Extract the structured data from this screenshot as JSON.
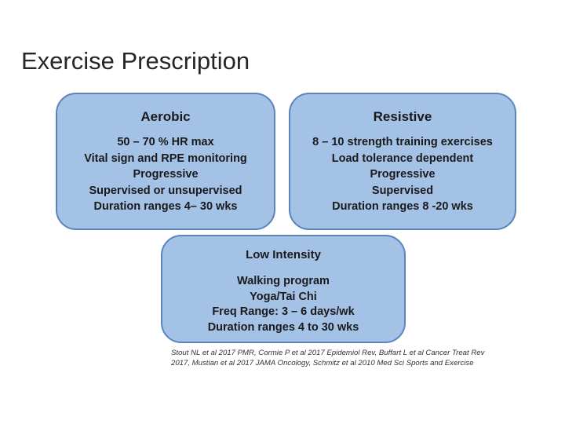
{
  "title": "Exercise Prescription",
  "aerobic": {
    "heading": "Aerobic",
    "lines": [
      "50 – 70 % HR max",
      "Vital sign and RPE monitoring",
      "Progressive",
      "Supervised or unsupervised",
      "Duration ranges 4– 30 wks"
    ]
  },
  "resistive": {
    "heading": "Resistive",
    "lines": [
      "8 – 10 strength training exercises",
      "Load tolerance dependent",
      "Progressive",
      "Supervised",
      "Duration ranges 8 -20 wks"
    ]
  },
  "low_intensity": {
    "heading": "Low Intensity",
    "lines": [
      "Walking program",
      "Yoga/Tai Chi",
      "Freq Range: 3 – 6 days/wk",
      "Duration ranges 4 to 30 wks"
    ]
  },
  "citation": [
    "Stout NL et al 2017 PMR, Cormie P et al 2017 Epidemiol Rev, Buffart L et al Cancer Treat Rev",
    "2017, Mustian et al 2017 JAMA Oncology, Schmitz et al 2010 Med Sci Sports and Exercise"
  ]
}
